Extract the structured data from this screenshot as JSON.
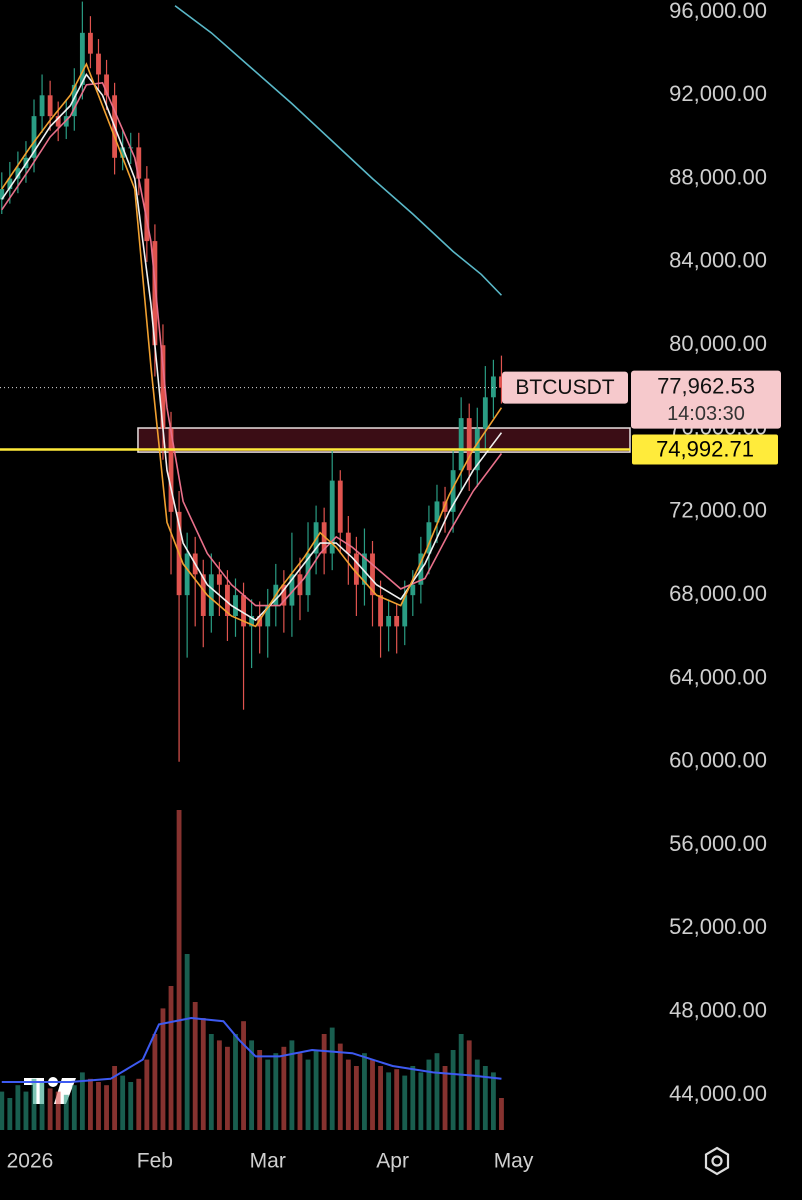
{
  "chart_data": {
    "type": "candlestick",
    "x": [
      -7,
      -5,
      -3,
      -1,
      1,
      3,
      5,
      7,
      9,
      11,
      13,
      15,
      17,
      19,
      21,
      23,
      25,
      27,
      29,
      31,
      33,
      35,
      37,
      39,
      41,
      43,
      45,
      47,
      49,
      51,
      53,
      55,
      57,
      59,
      61,
      63,
      65,
      67,
      69,
      71,
      73,
      75,
      77,
      79,
      81,
      83,
      85,
      87,
      89,
      91,
      93,
      95,
      97,
      99,
      101,
      103,
      105,
      107,
      109,
      111,
      113,
      115,
      117
    ],
    "open": [
      87000,
      87500,
      88000,
      88500,
      89000,
      91000,
      92000,
      91000,
      90500,
      91000,
      92500,
      95000,
      94000,
      93000,
      92000,
      89000,
      89500,
      89500,
      88000,
      85000,
      80000,
      76000,
      72000,
      68000,
      70000,
      69000,
      67000,
      69000,
      68500,
      67000,
      68000,
      66500,
      67000,
      66500,
      67500,
      68500,
      67500,
      69000,
      68000,
      70000,
      71500,
      70000,
      73500,
      71000,
      70000,
      68500,
      70000,
      68000,
      66500,
      67000,
      66500,
      68000,
      68500,
      70000,
      71500,
      72500,
      72000,
      74000,
      76500,
      74000,
      76000,
      77500,
      78500
    ],
    "high": [
      88300,
      88800,
      89300,
      89800,
      91800,
      93000,
      92700,
      91700,
      91800,
      93300,
      96500,
      95800,
      94700,
      93700,
      92600,
      90300,
      90200,
      90200,
      88600,
      85800,
      81000,
      76800,
      73000,
      71000,
      70800,
      69700,
      70000,
      69600,
      69200,
      68800,
      68600,
      67800,
      67700,
      68300,
      69500,
      69200,
      71000,
      69800,
      71500,
      72300,
      72200,
      75000,
      74000,
      71800,
      70800,
      71200,
      70600,
      68700,
      67800,
      67600,
      68700,
      69200,
      70800,
      72300,
      73300,
      73200,
      75000,
      77500,
      77200,
      77000,
      79000,
      79300,
      79500
    ],
    "low": [
      86300,
      86800,
      87300,
      87800,
      88300,
      90200,
      90300,
      89800,
      89900,
      90300,
      91800,
      93300,
      92300,
      91300,
      88200,
      88400,
      88700,
      87200,
      84000,
      78500,
      74500,
      69000,
      60000,
      65000,
      66500,
      65500,
      66200,
      67000,
      65800,
      66000,
      62500,
      64500,
      65200,
      65000,
      66500,
      66200,
      66000,
      66800,
      67200,
      69000,
      69000,
      69200,
      70000,
      68500,
      67000,
      67500,
      66500,
      65000,
      65300,
      65200,
      65600,
      67000,
      67600,
      69000,
      70500,
      71000,
      71000,
      73000,
      73000,
      73200,
      75000,
      76500,
      77200
    ],
    "close": [
      87500,
      88000,
      88500,
      89000,
      91000,
      92000,
      91000,
      90500,
      91000,
      92500,
      95000,
      94000,
      93000,
      92000,
      89000,
      89500,
      89500,
      88000,
      85000,
      80000,
      76000,
      72000,
      68000,
      70000,
      69000,
      67000,
      69000,
      68500,
      67000,
      68000,
      66500,
      67000,
      66500,
      67500,
      68500,
      67500,
      69000,
      68000,
      70000,
      71500,
      70000,
      73500,
      71000,
      70000,
      68500,
      70000,
      68000,
      66500,
      67000,
      66500,
      68000,
      68500,
      70000,
      71500,
      72500,
      72000,
      74000,
      76500,
      74000,
      76000,
      77500,
      78500,
      77962.53
    ],
    "up_color": "#2a9d84",
    "down_color": "#e0544f",
    "xlim": [
      -7.44,
      148.9
    ],
    "xticks": [
      {
        "value": 0,
        "label": "2026"
      },
      {
        "value": 31,
        "label": "Feb"
      },
      {
        "value": 59,
        "label": "Mar"
      },
      {
        "value": 90,
        "label": "Apr"
      },
      {
        "value": 120,
        "label": "May"
      }
    ],
    "ylim": [
      42320,
      96576
    ],
    "yticks": [
      {
        "value": 44000,
        "label": "44,000.00"
      },
      {
        "value": 48000,
        "label": "48,000.00"
      },
      {
        "value": 52000,
        "label": "52,000.00"
      },
      {
        "value": 56000,
        "label": "56,000.00"
      },
      {
        "value": 60000,
        "label": "60,000.00"
      },
      {
        "value": 64000,
        "label": "64,000.00"
      },
      {
        "value": 68000,
        "label": "68,000.00"
      },
      {
        "value": 72000,
        "label": "72,000.00"
      },
      {
        "value": 76000,
        "label": "76,000.00"
      },
      {
        "value": 80000,
        "label": "80,000.00"
      },
      {
        "value": 84000,
        "label": "84,000.00"
      },
      {
        "value": 88000,
        "label": "88,000.00"
      },
      {
        "value": 92000,
        "label": "92,000.00"
      },
      {
        "value": 96000,
        "label": "96,000.00"
      }
    ],
    "grid": false,
    "volume": {
      "values": [
        12,
        10,
        14,
        12,
        16,
        15,
        13,
        12,
        11,
        14,
        18,
        16,
        15,
        14,
        20,
        17,
        15,
        16,
        22,
        30,
        38,
        45,
        100,
        55,
        40,
        35,
        30,
        28,
        26,
        30,
        34,
        28,
        25,
        22,
        24,
        26,
        28,
        24,
        22,
        25,
        30,
        32,
        27,
        22,
        20,
        24,
        22,
        20,
        18,
        19,
        17,
        20,
        18,
        22,
        24,
        20,
        25,
        30,
        28,
        22,
        20,
        18,
        10
      ],
      "ylim": [
        0,
        100
      ]
    },
    "volume_ma": {
      "color": "#3d5af1",
      "x": [
        -7,
        10,
        20,
        28,
        32,
        40,
        48,
        52,
        56,
        62,
        70,
        80,
        90,
        100,
        110,
        117
      ],
      "values": [
        15,
        15,
        16,
        22,
        33,
        35,
        34,
        28,
        23,
        23,
        25,
        24,
        20,
        18,
        17,
        16
      ]
    },
    "lines": [
      {
        "color": "#5ab8c8",
        "x": [
          36,
          45,
          55,
          65,
          75,
          85,
          95,
          105,
          112,
          117
        ],
        "values": [
          96300,
          95000,
          93300,
          91600,
          89800,
          88000,
          86300,
          84500,
          83400,
          82400
        ]
      },
      {
        "color": "#e8708a",
        "x": [
          -7,
          0,
          5,
          10,
          14,
          18,
          22,
          26,
          30,
          34,
          38,
          44,
          50,
          56,
          62,
          68,
          72,
          76,
          80,
          86,
          92,
          98,
          104,
          110,
          117
        ],
        "values": [
          86500,
          88500,
          90000,
          91000,
          92500,
          92600,
          90800,
          89000,
          85000,
          77000,
          72500,
          70000,
          68500,
          67500,
          67500,
          68800,
          70000,
          70800,
          70300,
          69300,
          68300,
          68800,
          71000,
          73000,
          74800
        ]
      },
      {
        "color": "#f0f0f0",
        "x": [
          -7,
          0,
          5,
          10,
          14,
          18,
          22,
          26,
          30,
          34,
          38,
          44,
          50,
          56,
          62,
          68,
          72,
          76,
          80,
          86,
          92,
          98,
          104,
          110,
          117
        ],
        "values": [
          87000,
          89000,
          90500,
          91500,
          93000,
          92000,
          90000,
          88000,
          82000,
          74000,
          70500,
          68500,
          67500,
          66800,
          68000,
          69500,
          70500,
          70500,
          69800,
          68500,
          67800,
          69500,
          72000,
          74000,
          75800
        ]
      },
      {
        "color": "#f0a030",
        "x": [
          -7,
          0,
          5,
          10,
          14,
          18,
          22,
          26,
          30,
          34,
          38,
          44,
          50,
          56,
          62,
          68,
          72,
          76,
          80,
          86,
          92,
          98,
          104,
          110,
          117
        ],
        "values": [
          87500,
          89500,
          90800,
          92000,
          93500,
          91500,
          89500,
          87500,
          79000,
          71500,
          69500,
          68000,
          67000,
          66500,
          68300,
          69800,
          71000,
          70300,
          69300,
          68000,
          67500,
          70000,
          72800,
          75000,
          77000
        ]
      }
    ],
    "zone": {
      "x_start": 26.8,
      "low": 74870,
      "high": 76025
    },
    "symbol": "BTCUSDT",
    "last_price": {
      "value": 77962.53,
      "label": "77,962.53"
    },
    "countdown": "14:03:30",
    "level": {
      "value": 74992.71,
      "label": "74,992.71",
      "color": "#ffeb3b"
    }
  }
}
